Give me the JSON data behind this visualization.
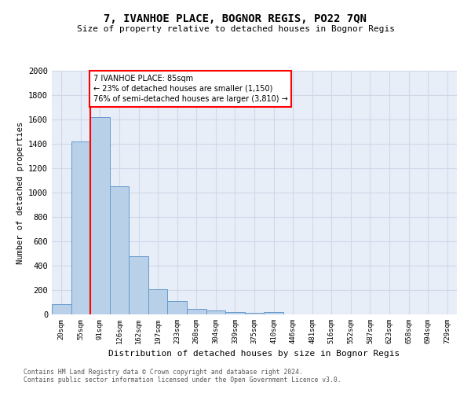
{
  "title": "7, IVANHOE PLACE, BOGNOR REGIS, PO22 7QN",
  "subtitle": "Size of property relative to detached houses in Bognor Regis",
  "xlabel": "Distribution of detached houses by size in Bognor Regis",
  "ylabel": "Number of detached properties",
  "footnote1": "Contains HM Land Registry data © Crown copyright and database right 2024.",
  "footnote2": "Contains public sector information licensed under the Open Government Licence v3.0.",
  "bar_labels": [
    "20sqm",
    "55sqm",
    "91sqm",
    "126sqm",
    "162sqm",
    "197sqm",
    "233sqm",
    "268sqm",
    "304sqm",
    "339sqm",
    "375sqm",
    "410sqm",
    "446sqm",
    "481sqm",
    "516sqm",
    "552sqm",
    "587sqm",
    "623sqm",
    "658sqm",
    "694sqm",
    "729sqm"
  ],
  "bar_values": [
    85,
    1420,
    1620,
    1050,
    475,
    205,
    110,
    45,
    35,
    20,
    15,
    20,
    0,
    0,
    0,
    0,
    0,
    0,
    0,
    0,
    0
  ],
  "bar_color": "#b8d0e8",
  "bar_edge_color": "#6699cc",
  "grid_color": "#d0d8e8",
  "background_color": "#e8eef8",
  "vline_color": "red",
  "vline_pos": 1.5,
  "annotation_text": "7 IVANHOE PLACE: 85sqm\n← 23% of detached houses are smaller (1,150)\n76% of semi-detached houses are larger (3,810) →",
  "annotation_box_edge": "red",
  "ylim": [
    0,
    2000
  ],
  "yticks": [
    0,
    200,
    400,
    600,
    800,
    1000,
    1200,
    1400,
    1600,
    1800,
    2000
  ]
}
